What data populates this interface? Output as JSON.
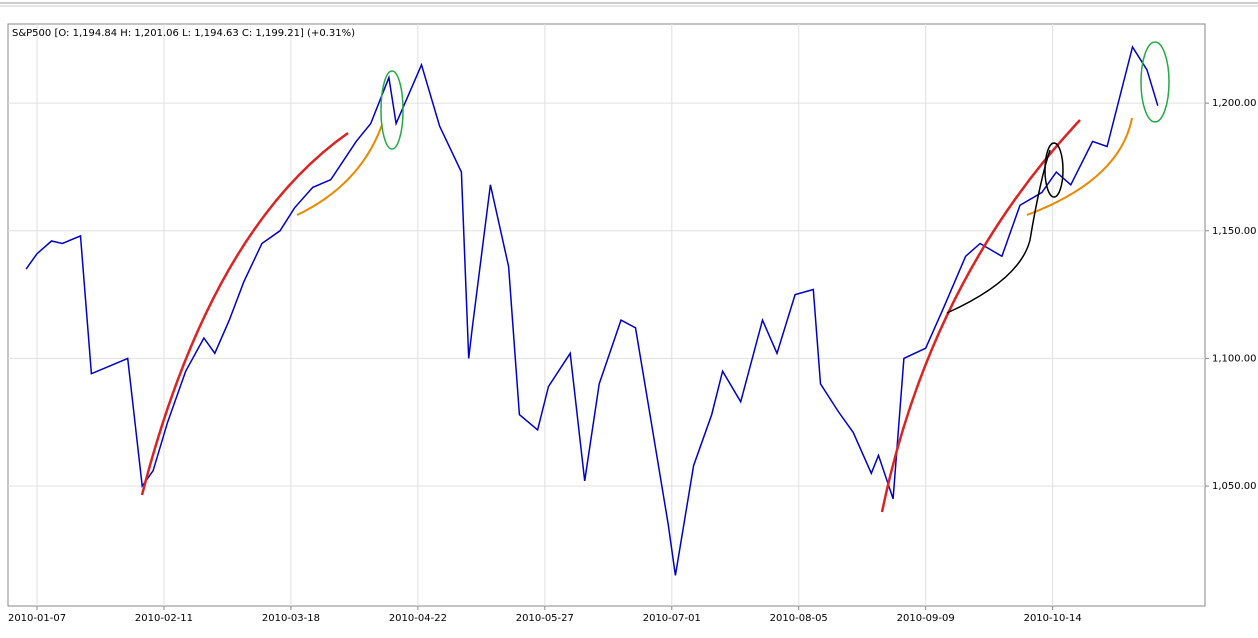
{
  "chart_data": {
    "type": "line",
    "title": "S&P500 [O: 1,194.84  H: 1,201.06  L: 1,194.63  C: 1,199.21] (+0.31%)",
    "x": [
      "2010-01-04",
      "2010-01-07",
      "2010-01-11",
      "2010-01-14",
      "2010-01-19",
      "2010-01-22",
      "2010-01-27",
      "2010-02-01",
      "2010-02-05",
      "2010-02-08",
      "2010-02-12",
      "2010-02-17",
      "2010-02-22",
      "2010-02-25",
      "2010-03-01",
      "2010-03-05",
      "2010-03-10",
      "2010-03-15",
      "2010-03-19",
      "2010-03-24",
      "2010-03-29",
      "2010-04-05",
      "2010-04-09",
      "2010-04-14",
      "2010-04-16",
      "2010-04-23",
      "2010-04-28",
      "2010-05-04",
      "2010-05-06",
      "2010-05-07",
      "2010-05-12",
      "2010-05-17",
      "2010-05-20",
      "2010-05-25",
      "2010-05-28",
      "2010-06-03",
      "2010-06-07",
      "2010-06-11",
      "2010-06-17",
      "2010-06-21",
      "2010-06-25",
      "2010-06-30",
      "2010-07-02",
      "2010-07-07",
      "2010-07-12",
      "2010-07-15",
      "2010-07-20",
      "2010-07-26",
      "2010-07-30",
      "2010-08-04",
      "2010-08-09",
      "2010-08-11",
      "2010-08-16",
      "2010-08-20",
      "2010-08-25",
      "2010-08-27",
      "2010-08-31",
      "2010-09-03",
      "2010-09-09",
      "2010-09-14",
      "2010-09-20",
      "2010-09-24",
      "2010-09-30",
      "2010-10-05",
      "2010-10-11",
      "2010-10-15",
      "2010-10-19",
      "2010-10-25",
      "2010-10-29",
      "2010-11-05",
      "2010-11-09",
      "2010-11-12"
    ],
    "series": [
      {
        "color": "#0000cc",
        "values": [
          1135,
          1141,
          1146,
          1145,
          1148,
          1094,
          1097,
          1100,
          1050,
          1056,
          1075,
          1095,
          1108,
          1102,
          1115,
          1130,
          1145,
          1150,
          1159,
          1167,
          1170,
          1185,
          1192,
          1210,
          1192,
          1215,
          1191,
          1173,
          1100,
          1112,
          1168,
          1136,
          1078,
          1072,
          1089,
          1102,
          1052,
          1090,
          1115,
          1112,
          1078,
          1035,
          1015,
          1058,
          1078,
          1095,
          1083,
          1115,
          1102,
          1125,
          1127,
          1090,
          1079,
          1071,
          1055,
          1062,
          1045,
          1100,
          1104,
          1120,
          1140,
          1145,
          1140,
          1160,
          1165,
          1173,
          1168,
          1185,
          1183,
          1222,
          1213,
          1199
        ]
      }
    ],
    "xlim": [
      "2009-12-30",
      "2010-11-25"
    ],
    "xticks": [
      "2010-01-07",
      "2010-02-11",
      "2010-03-18",
      "2010-04-22",
      "2010-05-27",
      "2010-07-01",
      "2010-08-05",
      "2010-09-09",
      "2010-10-14"
    ],
    "ylim": [
      1003,
      1231
    ],
    "yticks": [
      {
        "value": 1050,
        "label": "1,050.00"
      },
      {
        "value": 1100,
        "label": "1,100.00"
      },
      {
        "value": 1150,
        "label": "1,150.00"
      },
      {
        "value": 1200,
        "label": "1,200.00"
      }
    ],
    "grid": true
  }
}
